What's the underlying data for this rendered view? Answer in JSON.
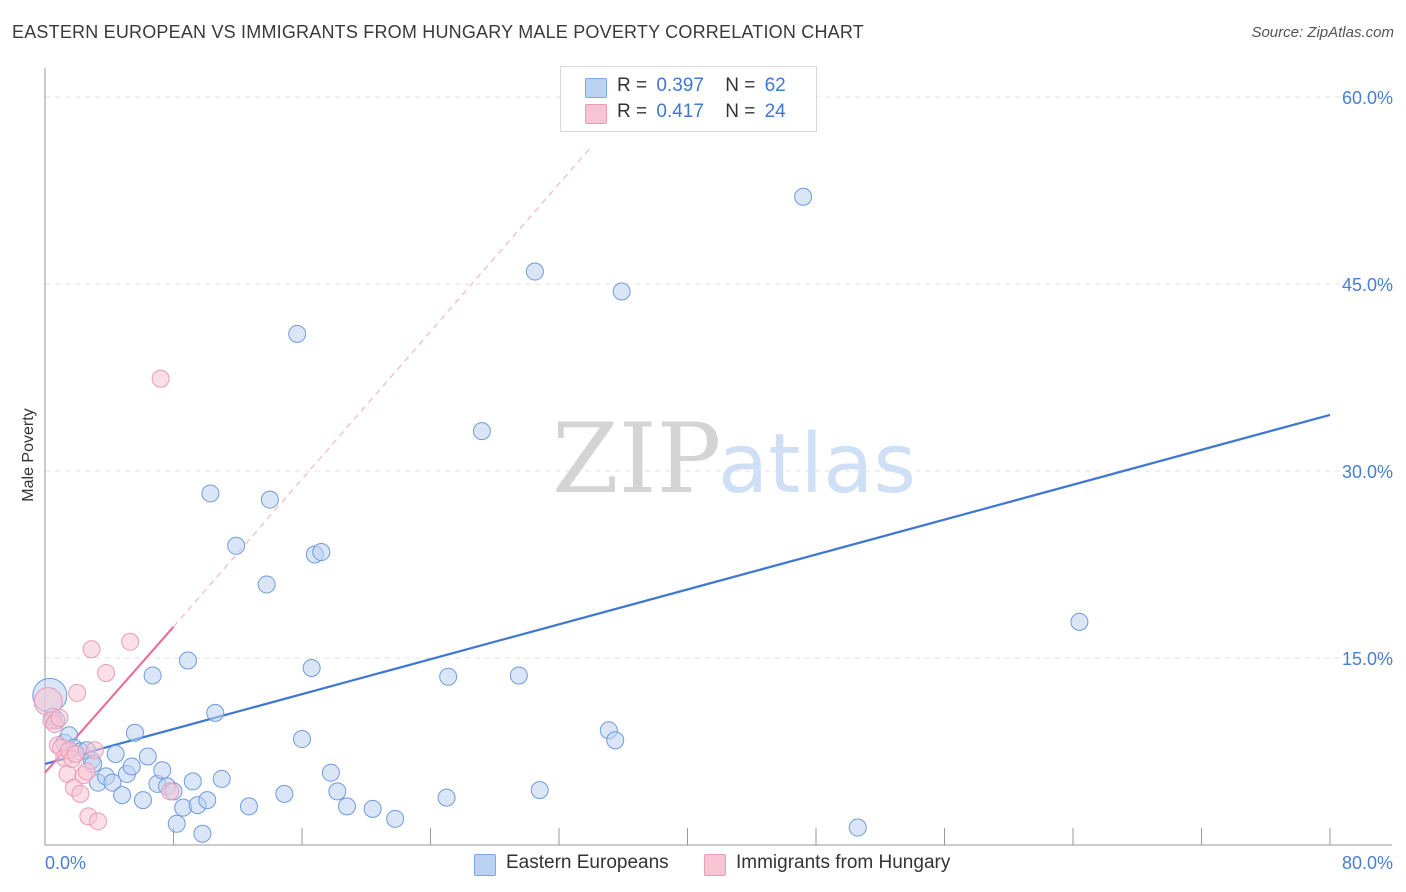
{
  "title": "EASTERN EUROPEAN VS IMMIGRANTS FROM HUNGARY MALE POVERTY CORRELATION CHART",
  "source": "Source: ZipAtlas.com",
  "watermark": {
    "zip": "ZIP",
    "atlas": "atlas"
  },
  "legend_top": [
    {
      "r_label": "R =",
      "r_value": "0.397",
      "n_label": "N =",
      "n_value": "62"
    },
    {
      "r_label": "R =",
      "r_value": "0.417",
      "n_label": "N =",
      "n_value": "24"
    }
  ],
  "legend_bottom": [
    "Eastern Europeans",
    "Immigrants from Hungary"
  ],
  "colors": {
    "blue": "#3f78d1",
    "blue_fill": "#bcd2f3",
    "pink": "#e8709a",
    "pink_fill": "#f7c4d4",
    "grid": "#e2e2e2",
    "tick_text": "#4a7fd0"
  },
  "chart_data": {
    "type": "scatter",
    "xlabel": "",
    "ylabel": "Male Poverty",
    "xlim": [
      0,
      80
    ],
    "ylim": [
      0,
      60
    ],
    "x_tick_labels": [
      "0.0%",
      "80.0%"
    ],
    "y_ticks": [
      15,
      30,
      45,
      60
    ],
    "y_tick_labels": [
      "15.0%",
      "30.0%",
      "45.0%",
      "60.0%"
    ],
    "grid": true,
    "legend_position": "top-center",
    "series": [
      {
        "name": "Eastern Europeans",
        "color": "#3f78d1",
        "trend": {
          "x0": 0,
          "y0": 6.5,
          "x1": 80,
          "y1": 34.5
        },
        "points": [
          [
            0.3,
            12.0
          ],
          [
            0.5,
            10.3
          ],
          [
            0.7,
            10.0
          ],
          [
            1.2,
            8.2
          ],
          [
            1.5,
            8.8
          ],
          [
            1.8,
            7.8
          ],
          [
            2.2,
            7.5
          ],
          [
            2.6,
            7.6
          ],
          [
            2.9,
            6.8
          ],
          [
            3.0,
            6.5
          ],
          [
            3.3,
            5.0
          ],
          [
            3.8,
            5.5
          ],
          [
            4.2,
            5.0
          ],
          [
            4.4,
            7.3
          ],
          [
            4.8,
            4.0
          ],
          [
            5.1,
            5.7
          ],
          [
            5.4,
            6.3
          ],
          [
            5.6,
            9.0
          ],
          [
            6.1,
            3.6
          ],
          [
            6.4,
            7.1
          ],
          [
            6.7,
            13.6
          ],
          [
            7.0,
            4.9
          ],
          [
            7.3,
            6.0
          ],
          [
            7.6,
            4.7
          ],
          [
            8.0,
            4.3
          ],
          [
            8.2,
            1.7
          ],
          [
            8.6,
            3.0
          ],
          [
            8.9,
            14.8
          ],
          [
            9.2,
            5.1
          ],
          [
            9.5,
            3.2
          ],
          [
            9.8,
            0.9
          ],
          [
            10.1,
            3.6
          ],
          [
            10.6,
            10.6
          ],
          [
            11.0,
            5.3
          ],
          [
            11.9,
            24.0
          ],
          [
            12.7,
            3.1
          ],
          [
            13.8,
            20.9
          ],
          [
            14.0,
            27.7
          ],
          [
            14.9,
            4.1
          ],
          [
            15.7,
            41.0
          ],
          [
            16.0,
            8.5
          ],
          [
            16.6,
            14.2
          ],
          [
            16.8,
            23.3
          ],
          [
            17.2,
            23.5
          ],
          [
            17.8,
            5.8
          ],
          [
            18.2,
            4.3
          ],
          [
            18.8,
            3.1
          ],
          [
            10.3,
            28.2
          ],
          [
            20.4,
            2.9
          ],
          [
            21.8,
            2.1
          ],
          [
            25.0,
            3.8
          ],
          [
            25.1,
            13.5
          ],
          [
            27.2,
            33.2
          ],
          [
            29.5,
            13.6
          ],
          [
            30.5,
            46.0
          ],
          [
            30.8,
            4.4
          ],
          [
            35.1,
            9.2
          ],
          [
            35.5,
            8.4
          ],
          [
            35.9,
            44.4
          ],
          [
            47.2,
            52.0
          ],
          [
            50.6,
            1.4
          ],
          [
            64.4,
            17.9
          ]
        ]
      },
      {
        "name": "Immigrants from Hungary",
        "color": "#e8709a",
        "trend": {
          "x0": 0,
          "y0": 5.8,
          "x1": 8,
          "y1": 17.5
        },
        "trend_ext": {
          "x0": 8,
          "y0": 17.5,
          "x1": 34,
          "y1": 56.0
        },
        "points": [
          [
            0.2,
            11.5
          ],
          [
            0.4,
            10.0
          ],
          [
            0.6,
            9.7
          ],
          [
            0.8,
            8.0
          ],
          [
            1.0,
            7.8
          ],
          [
            1.2,
            7.0
          ],
          [
            1.4,
            5.7
          ],
          [
            1.5,
            7.6
          ],
          [
            1.7,
            6.9
          ],
          [
            1.8,
            4.6
          ],
          [
            1.9,
            7.3
          ],
          [
            2.0,
            12.2
          ],
          [
            2.2,
            4.1
          ],
          [
            2.4,
            5.6
          ],
          [
            2.6,
            5.9
          ],
          [
            2.7,
            2.3
          ],
          [
            2.9,
            15.7
          ],
          [
            3.1,
            7.6
          ],
          [
            3.3,
            1.9
          ],
          [
            3.8,
            13.8
          ],
          [
            5.3,
            16.3
          ],
          [
            7.2,
            37.4
          ],
          [
            7.8,
            4.3
          ],
          [
            0.9,
            10.2
          ]
        ]
      }
    ]
  }
}
